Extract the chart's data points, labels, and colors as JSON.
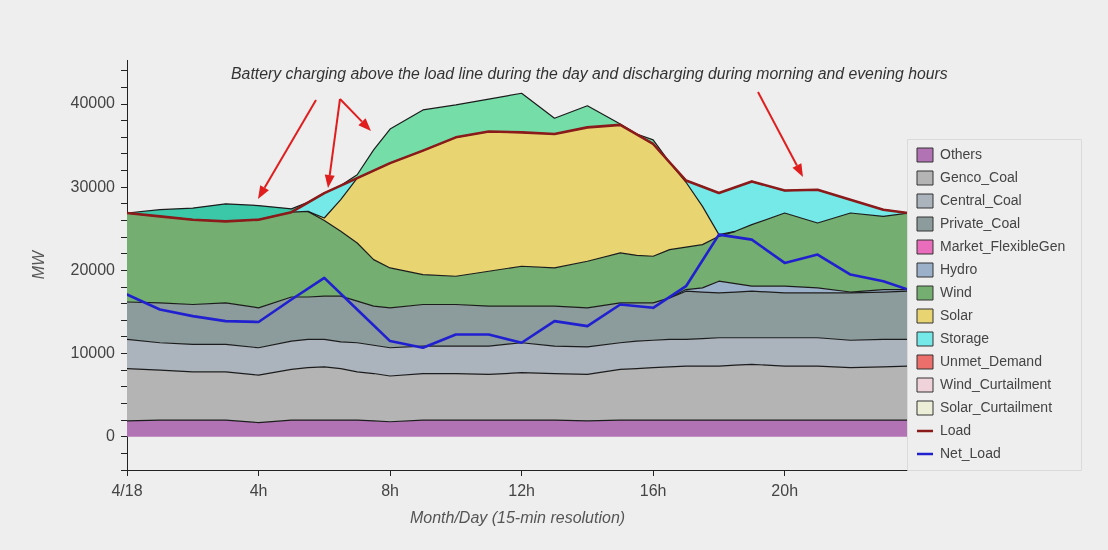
{
  "chart_data": {
    "type": "area",
    "stacked": true,
    "grid": false,
    "legend": "right",
    "annotations": [
      "Battery charging above the load line during the day and discharging during morning and evening hours"
    ],
    "xlabel": "Month/Day (15-min resolution)",
    "ylabel": "MW",
    "x": [
      0,
      1,
      2,
      3,
      4,
      5,
      5.5,
      6,
      6.5,
      7,
      7.5,
      8,
      9,
      10,
      11,
      12,
      13,
      14,
      15,
      15.5,
      16,
      16.5,
      17,
      17.5,
      18,
      18.5,
      19,
      20,
      21,
      22,
      23,
      23.75
    ],
    "xlim": [
      0,
      23.75
    ],
    "xticks": [
      {
        "value": 0,
        "label": "4/18"
      },
      {
        "value": 4,
        "label": "4h"
      },
      {
        "value": 8,
        "label": "8h"
      },
      {
        "value": 12,
        "label": "12h"
      },
      {
        "value": 16,
        "label": "16h"
      },
      {
        "value": 20,
        "label": "20h"
      }
    ],
    "ylim": [
      -4000,
      45300
    ],
    "yticks": [
      {
        "value": -4000,
        "label": null
      },
      {
        "value": -2000,
        "label": null
      },
      0,
      {
        "value": 2000,
        "label": null
      },
      {
        "value": 4000,
        "label": null
      },
      {
        "value": 6000,
        "label": null
      },
      {
        "value": 8000,
        "label": null
      },
      10000,
      {
        "value": 12000,
        "label": null
      },
      {
        "value": 14000,
        "label": null
      },
      {
        "value": 16000,
        "label": null
      },
      {
        "value": 18000,
        "label": null
      },
      20000,
      {
        "value": 22000,
        "label": null
      },
      {
        "value": 24000,
        "label": null
      },
      {
        "value": 26000,
        "label": null
      },
      {
        "value": 28000,
        "label": null
      },
      30000,
      {
        "value": 32000,
        "label": null
      },
      {
        "value": 34000,
        "label": null
      },
      {
        "value": 36000,
        "label": null
      },
      {
        "value": 38000,
        "label": null
      },
      40000,
      {
        "value": 42000,
        "label": null
      },
      {
        "value": 44000,
        "label": null
      }
    ],
    "series": [
      {
        "name": "Others",
        "color": "#b273b5",
        "values": [
          1900,
          2000,
          2000,
          2000,
          1700,
          2000,
          2000,
          2000,
          2000,
          2000,
          1900,
          1800,
          2000,
          2000,
          2000,
          2000,
          2000,
          1900,
          2000,
          2000,
          2000,
          2000,
          2000,
          2000,
          2000,
          2000,
          2000,
          2000,
          2000,
          2000,
          2000,
          2000
        ]
      },
      {
        "name": "Genco_Coal",
        "color": "#b4b4b4",
        "values": [
          6300,
          6000,
          5800,
          5800,
          5700,
          6100,
          6300,
          6400,
          6200,
          5800,
          5700,
          5500,
          5600,
          5600,
          5500,
          5700,
          5600,
          5600,
          6100,
          6200,
          6300,
          6400,
          6500,
          6500,
          6500,
          6600,
          6700,
          6500,
          6500,
          6300,
          6400,
          6500
        ]
      },
      {
        "name": "Central_Coal",
        "color": "#abb3bd",
        "values": [
          3500,
          3300,
          3300,
          3300,
          3300,
          3400,
          3400,
          3300,
          3200,
          3500,
          3400,
          3400,
          3300,
          3300,
          3400,
          3600,
          3300,
          3300,
          3200,
          3300,
          3300,
          3300,
          3200,
          3300,
          3400,
          3300,
          3200,
          3400,
          3400,
          3300,
          3300,
          3200
        ]
      },
      {
        "name": "Private_Coal",
        "color": "#8c9b9b",
        "values": [
          4500,
          4800,
          4800,
          5000,
          4800,
          5300,
          5100,
          5200,
          5500,
          5000,
          4700,
          4800,
          5000,
          5000,
          4800,
          4400,
          4800,
          4700,
          4800,
          4600,
          4500,
          5000,
          5800,
          5600,
          5400,
          5500,
          5600,
          5400,
          5400,
          5700,
          5700,
          5800
        ]
      },
      {
        "name": "Market_FlexibleGen",
        "color": "#ea6cbc",
        "values": [
          null,
          null,
          null,
          null,
          null,
          null,
          null,
          null,
          null,
          null,
          null,
          null,
          null,
          null,
          null,
          null,
          null,
          null,
          null,
          null,
          null,
          null,
          null,
          null,
          null,
          null,
          null,
          null,
          null,
          null,
          null,
          null
        ]
      },
      {
        "name": "Hydro",
        "color": "#9bb1c9",
        "values": [
          null,
          null,
          null,
          null,
          null,
          null,
          null,
          null,
          null,
          null,
          null,
          null,
          null,
          null,
          null,
          null,
          null,
          null,
          null,
          null,
          null,
          0,
          200,
          500,
          1400,
          1000,
          600,
          800,
          600,
          100,
          300,
          200
        ]
      },
      {
        "name": "Wind",
        "color": "#74ae70",
        "values": [
          10700,
          10400,
          10200,
          9800,
          10600,
          10200,
          10300,
          9100,
          7800,
          7000,
          5600,
          4800,
          3600,
          3400,
          4200,
          4800,
          4600,
          5600,
          6000,
          5700,
          5600,
          5800,
          5100,
          5200,
          5400,
          6300,
          7400,
          8800,
          7800,
          9500,
          8800,
          9200
        ]
      },
      {
        "name": "Solar",
        "color": "#e8d571",
        "values": [
          null,
          null,
          null,
          null,
          null,
          null,
          0,
          300,
          3800,
          7800,
          10700,
          12600,
          14900,
          16700,
          16800,
          16100,
          16100,
          16100,
          15400,
          14600,
          13500,
          10500,
          7800,
          4600,
          200,
          0,
          null,
          null,
          null,
          null,
          null,
          null
        ]
      },
      {
        "name": "Storage",
        "color": "#75e8e8",
        "values": [
          null,
          null,
          null,
          null,
          null,
          0,
          1100,
          3000,
          1700,
          0,
          null,
          null,
          null,
          null,
          null,
          null,
          null,
          null,
          null,
          null,
          null,
          0,
          200,
          2400,
          5000,
          5300,
          5200,
          2700,
          4000,
          1600,
          800,
          0
        ]
      },
      {
        "name": "Unmet_Demand",
        "color": "#ec6f6b",
        "values": [
          null,
          null,
          null,
          null,
          null,
          null,
          null,
          null,
          null,
          null,
          null,
          null,
          null,
          null,
          null,
          null,
          null,
          null,
          null,
          null,
          null,
          null,
          null,
          null,
          null,
          null,
          null,
          null,
          null,
          null,
          null,
          null
        ]
      },
      {
        "name": "Wind_Curtailment",
        "color": "#f0d2da",
        "values": [
          null,
          null,
          null,
          null,
          null,
          null,
          null,
          null,
          null,
          null,
          null,
          null,
          null,
          null,
          null,
          null,
          null,
          null,
          null,
          null,
          null,
          null,
          null,
          null,
          null,
          null,
          null,
          null,
          null,
          null,
          null,
          null
        ]
      },
      {
        "name": "Solar_Curtailment",
        "color": "#edeed8",
        "values": [
          null,
          null,
          null,
          null,
          null,
          null,
          null,
          null,
          null,
          null,
          null,
          null,
          null,
          null,
          null,
          null,
          null,
          null,
          null,
          null,
          null,
          null,
          null,
          null,
          null,
          null,
          null,
          null,
          null,
          null,
          null,
          null
        ]
      },
      {
        "color": "#3ac8a8",
        "values": [
          0,
          800,
          1400,
          2100,
          1700,
          400,
          0,
          null,
          null,
          null,
          null,
          null,
          null,
          null,
          null,
          null,
          null,
          null,
          null,
          null,
          null,
          null,
          null,
          null,
          null,
          null,
          null,
          null,
          null,
          null,
          null,
          null
        ]
      },
      {
        "color": "#74dda8",
        "values": [
          null,
          null,
          null,
          null,
          null,
          null,
          null,
          null,
          0,
          400,
          2500,
          4100,
          4900,
          3900,
          3900,
          4700,
          1900,
          2600,
          100,
          0,
          500,
          0,
          null,
          null,
          null,
          null,
          null,
          null,
          null,
          null,
          null,
          null
        ]
      },
      {
        "name": "Load",
        "type": "line",
        "color": "#8b1a1a",
        "x": [
          0,
          1,
          2,
          3,
          4,
          5,
          6,
          7,
          8,
          9,
          10,
          11,
          12,
          13,
          14,
          15,
          16,
          17,
          18,
          19,
          20,
          21,
          22,
          23,
          23.75
        ],
        "values": [
          26900,
          26500,
          26100,
          25900,
          26100,
          27000,
          29300,
          31100,
          32900,
          34400,
          36000,
          36700,
          36600,
          36400,
          37200,
          37500,
          35200,
          30800,
          29300,
          30700,
          29600,
          29700,
          28500,
          27300,
          26900
        ]
      },
      {
        "name": "Net_Load",
        "type": "line",
        "color": "#2020d0",
        "x": [
          0,
          1,
          2,
          3,
          4,
          5,
          6,
          7,
          8,
          9,
          10,
          11,
          12,
          13,
          14,
          15,
          16,
          17,
          18,
          19,
          20,
          21,
          22,
          23,
          23.75
        ],
        "values": [
          17100,
          15300,
          14500,
          13900,
          13800,
          16500,
          19100,
          15300,
          11500,
          10700,
          12300,
          12300,
          11300,
          13900,
          13300,
          15900,
          15500,
          18100,
          24300,
          23700,
          20900,
          21900,
          19500,
          18700,
          17700
        ]
      }
    ]
  }
}
